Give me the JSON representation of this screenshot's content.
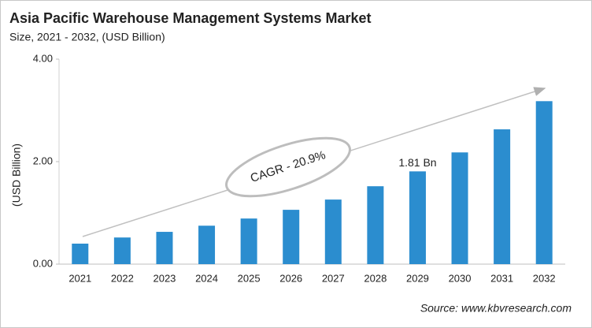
{
  "chart_data": {
    "type": "bar",
    "title": "Asia Pacific Warehouse Management Systems Market",
    "subtitle": "Size, 2021 - 2032, (USD Billion)",
    "y_label": "(USD Billion)",
    "categories": [
      "2021",
      "2022",
      "2023",
      "2024",
      "2025",
      "2026",
      "2027",
      "2028",
      "2029",
      "2030",
      "2031",
      "2032"
    ],
    "values": [
      0.4,
      0.52,
      0.63,
      0.75,
      0.89,
      1.06,
      1.26,
      1.52,
      1.81,
      2.18,
      2.63,
      3.18
    ],
    "value_labels": [
      null,
      null,
      null,
      null,
      null,
      null,
      null,
      null,
      "1.81 Bn",
      null,
      null,
      null
    ],
    "color": "#2b8dcf",
    "ylim": [
      0,
      4
    ],
    "yticks": [
      {
        "value": 0,
        "label": "0.00"
      },
      {
        "value": 2,
        "label": "2.00"
      },
      {
        "value": 4,
        "label": "4.00"
      }
    ],
    "annotation": "CAGR - 20.9%",
    "source": "Source: www.kbvresearch.com"
  }
}
